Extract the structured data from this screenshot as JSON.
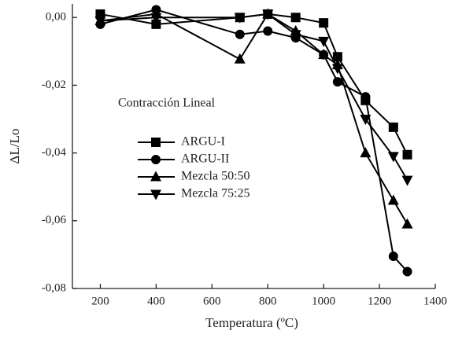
{
  "chart_data": {
    "type": "line",
    "xlabel": "Temperatura (ºC)",
    "ylabel": "ΔL/Lo",
    "legend_title": "Contracción Lineal",
    "xlim": [
      100,
      1400
    ],
    "ylim": [
      -0.08,
      0.004
    ],
    "xticks": [
      200,
      400,
      600,
      800,
      1000,
      1200,
      1400
    ],
    "yticks": [
      {
        "value": 0,
        "label": "0,00"
      },
      {
        "value": -0.02,
        "label": "-0,02"
      },
      {
        "value": -0.04,
        "label": "-0,04"
      },
      {
        "value": -0.06,
        "label": "-0,06"
      },
      {
        "value": -0.08,
        "label": "-0,08"
      }
    ],
    "x": [
      200,
      400,
      700,
      800,
      900,
      1000,
      1050,
      1150,
      1250,
      1300
    ],
    "series": [
      {
        "name": "ARGU-I",
        "color": "#000000",
        "marker": "square",
        "values": [
          0.001,
          -0.002,
          0.0,
          0.001,
          0.0,
          -0.0016,
          -0.0116,
          -0.0245,
          -0.0324,
          -0.0405
        ]
      },
      {
        "name": "ARGU-II",
        "color": "#000000",
        "marker": "circle",
        "values": [
          -0.002,
          0.0023,
          -0.005,
          -0.004,
          -0.006,
          -0.011,
          -0.019,
          -0.0234,
          -0.0705,
          -0.075
        ]
      },
      {
        "name": "Mezcla 50:50",
        "color": "#000000",
        "marker": "triangle-up",
        "values": [
          -0.001,
          0.001,
          -0.0123,
          0.001,
          -0.004,
          -0.011,
          -0.014,
          -0.04,
          -0.054,
          -0.061
        ]
      },
      {
        "name": "Mezcla 75:25",
        "color": "#000000",
        "marker": "triangle-down",
        "values": [
          -0.001,
          0.0,
          0.0,
          0.001,
          -0.005,
          -0.007,
          -0.015,
          -0.03,
          -0.041,
          -0.048
        ]
      }
    ]
  }
}
